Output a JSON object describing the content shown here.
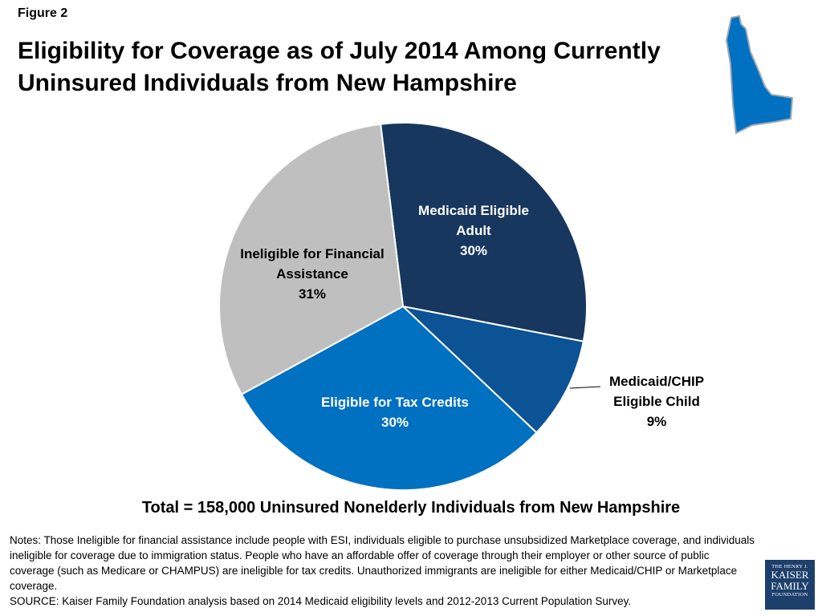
{
  "figure_label": "Figure 2",
  "title_lines": [
    "Eligibility for Coverage as of July 2014 Among Currently",
    "Uninsured Individuals from New Hampshire"
  ],
  "chart_data": {
    "type": "pie",
    "slices": [
      {
        "label_lines": [
          "Medicaid Eligible",
          "Adult"
        ],
        "value": 30,
        "value_label": "30%",
        "color": "#17375e"
      },
      {
        "label_lines": [
          "Medicaid/CHIP",
          "Eligible Child"
        ],
        "value": 9,
        "value_label": "9%",
        "color": "#0b5394"
      },
      {
        "label_lines": [
          "Eligible for Tax Credits"
        ],
        "value": 30,
        "value_label": "30%",
        "color": "#0070c0"
      },
      {
        "label_lines": [
          "Ineligible for Financial",
          "Assistance"
        ],
        "value": 31,
        "value_label": "31%",
        "color": "#bfbfbf"
      }
    ]
  },
  "total_text": "Total = 158,000 Uninsured Nonelderly Individuals from New Hampshire",
  "notes": {
    "text": "Notes: Those Ineligible for financial assistance include people with ESI, individuals eligible to purchase unsubsidized Marketplace coverage, and individuals ineligible for coverage due to immigration status. People who have an affordable offer of coverage through their employer or other source of public coverage (such as Medicare or CHAMPUS) are ineligible for tax credits. Unauthorized immigrants are ineligible for either Medicaid/CHIP or Marketplace coverage.",
    "source": "SOURCE: Kaiser Family Foundation analysis based on 2014 Medicaid eligibility levels and 2012-2013 Current Population Survey."
  },
  "logo": {
    "line1": "THE HENRY J.",
    "line2": "KAISER",
    "line3": "FAMILY",
    "line4": "FOUNDATION"
  },
  "map_color": "#0070c0"
}
